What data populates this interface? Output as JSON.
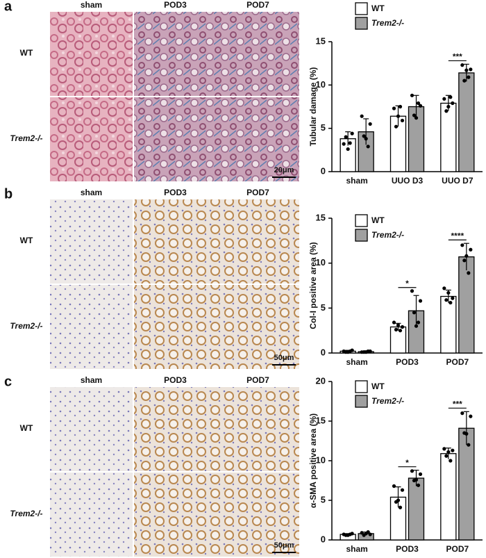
{
  "panels": [
    {
      "letter": "a",
      "columns": [
        "sham",
        "POD3",
        "POD7"
      ],
      "rows": [
        "WT",
        "Trem2-/-"
      ],
      "scale_bar": "20μm"
    },
    {
      "letter": "b",
      "columns": [
        "sham",
        "POD3",
        "POD7"
      ],
      "rows": [
        "WT",
        "Trem2-/-"
      ],
      "scale_bar": "50μm"
    },
    {
      "letter": "c",
      "columns": [
        "sham",
        "POD3",
        "POD7"
      ],
      "rows": [
        "WT",
        "Trem2-/-"
      ],
      "scale_bar": "50μm"
    }
  ],
  "chart_data": [
    {
      "type": "bar",
      "y_label": "Tubular damage (%)",
      "categories": [
        "sham",
        "UUO D3",
        "UUO D7"
      ],
      "ylim": [
        0,
        15
      ],
      "yticks": [
        0,
        5,
        10,
        15
      ],
      "series": [
        {
          "name": "WT",
          "color": "#ffffff",
          "values": [
            3.8,
            6.4,
            7.9
          ],
          "errors": [
            0.8,
            1.2,
            0.9
          ],
          "points": [
            [
              3.2,
              4.4,
              4.0,
              3.3,
              2.6
            ],
            [
              7.3,
              5.9,
              5.2,
              7.5,
              6.4
            ],
            [
              8.4,
              7.9,
              7.0,
              8.6,
              7.5
            ]
          ]
        },
        {
          "name": "Trem2-/-",
          "color": "#a0a0a0",
          "values": [
            4.6,
            7.5,
            11.4
          ],
          "errors": [
            1.5,
            1.3,
            1.0
          ],
          "points": [
            [
              6.4,
              5.5,
              4.1,
              2.9,
              3.8
            ],
            [
              8.8,
              7.6,
              6.5,
              7.9,
              6.2
            ],
            [
              12.3,
              11.8,
              10.5,
              10.9,
              11.7
            ]
          ]
        }
      ],
      "annotations": [
        {
          "category": "UUO D7",
          "text": "***"
        }
      ]
    },
    {
      "type": "bar",
      "y_label": "Col-I positive area (%)",
      "categories": [
        "sham",
        "POD3",
        "POD7"
      ],
      "ylim": [
        0,
        15
      ],
      "yticks": [
        0,
        5,
        10,
        15
      ],
      "series": [
        {
          "name": "WT",
          "color": "#ffffff",
          "values": [
            0.2,
            2.9,
            6.3
          ],
          "errors": [
            0.1,
            0.4,
            0.7
          ],
          "points": [
            [
              0.2,
              0.3,
              0.1,
              0.2,
              0.1
            ],
            [
              3.4,
              2.9,
              2.6,
              2.5,
              3.1
            ],
            [
              7.2,
              6.1,
              5.9,
              5.6,
              6.7
            ]
          ]
        },
        {
          "name": "Trem2-/-",
          "color": "#a0a0a0",
          "values": [
            0.15,
            4.7,
            10.7
          ],
          "errors": [
            0.1,
            1.7,
            1.5
          ],
          "points": [
            [
              0.1,
              0.2,
              0.1,
              0.2,
              0.1
            ],
            [
              6.9,
              5.8,
              4.5,
              3.4,
              3.0
            ],
            [
              12.0,
              11.5,
              10.3,
              8.9,
              10.8
            ]
          ]
        }
      ],
      "annotations": [
        {
          "category": "POD3",
          "text": "*"
        },
        {
          "category": "POD7",
          "text": "****"
        }
      ]
    },
    {
      "type": "bar",
      "y_label": "α-SMA positive area (%)",
      "categories": [
        "sham",
        "POD3",
        "POD7"
      ],
      "ylim": [
        0,
        20
      ],
      "yticks": [
        0,
        5,
        10,
        15,
        20
      ],
      "series": [
        {
          "name": "WT",
          "color": "#ffffff",
          "values": [
            0.7,
            5.4,
            10.9
          ],
          "errors": [
            0.1,
            1.3,
            0.7
          ],
          "points": [
            [
              0.7,
              0.8,
              0.6,
              0.7,
              0.6
            ],
            [
              6.8,
              6.3,
              4.8,
              4.1,
              5.0
            ],
            [
              11.5,
              11.3,
              10.6,
              10.0,
              11.1
            ]
          ]
        },
        {
          "name": "Trem2-/-",
          "color": "#a0a0a0",
          "values": [
            0.8,
            7.8,
            14.1
          ],
          "errors": [
            0.2,
            1.0,
            2.1
          ],
          "points": [
            [
              0.9,
              0.7,
              0.6,
              1.0,
              0.8
            ],
            [
              8.7,
              8.3,
              7.5,
              6.9,
              7.6
            ],
            [
              16.0,
              15.6,
              13.5,
              12.0,
              13.4
            ]
          ]
        }
      ],
      "annotations": [
        {
          "category": "POD3",
          "text": "*"
        },
        {
          "category": "POD7",
          "text": "***"
        }
      ]
    }
  ]
}
